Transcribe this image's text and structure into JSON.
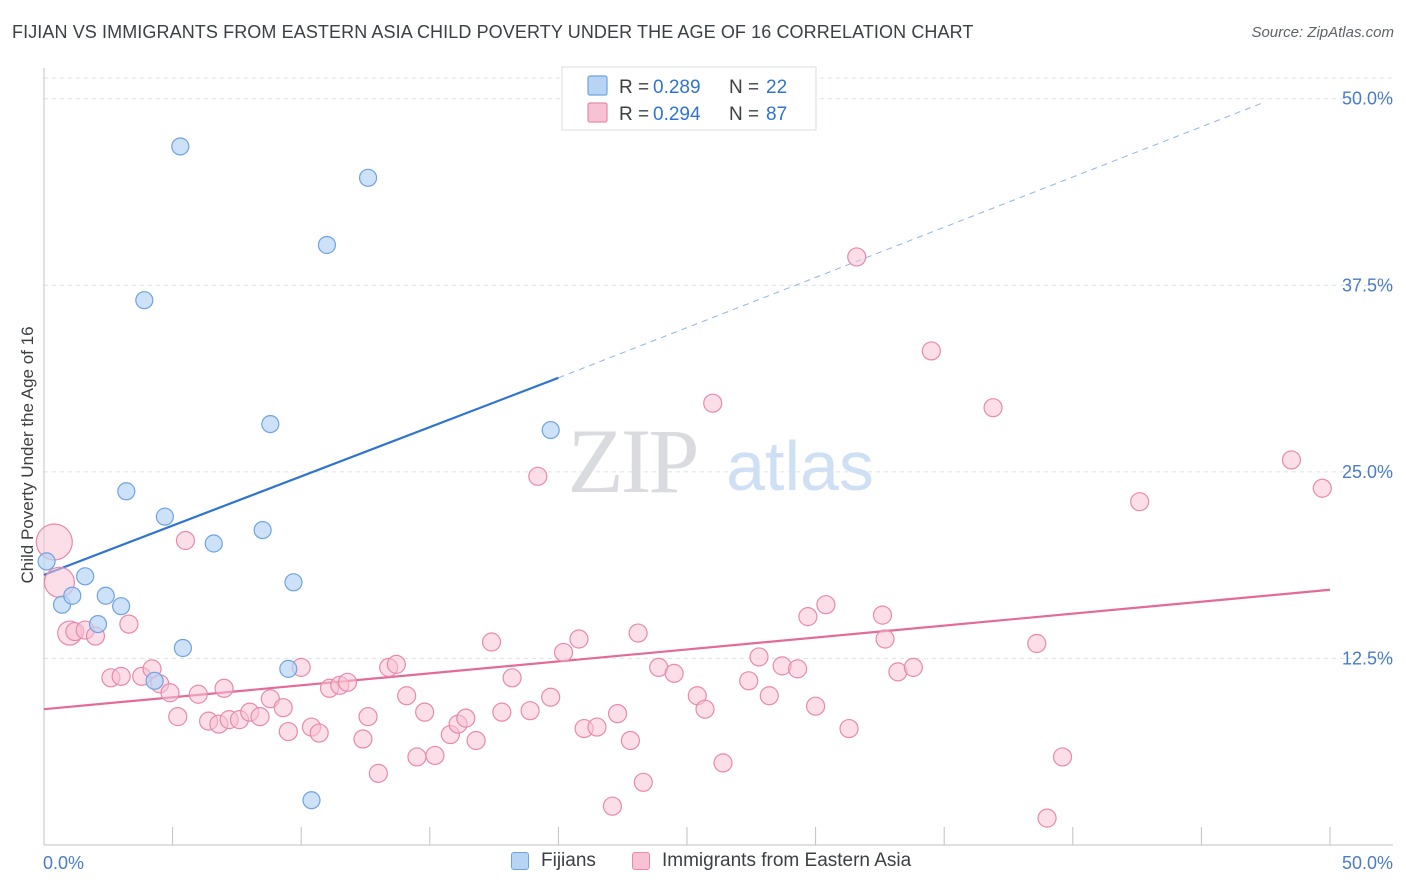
{
  "title": "FIJIAN VS IMMIGRANTS FROM EASTERN ASIA CHILD POVERTY UNDER THE AGE OF 16 CORRELATION CHART",
  "source": "Source: ZipAtlas.com",
  "watermark": {
    "zip": "ZIP",
    "atlas": "atlas"
  },
  "colors": {
    "blue_fill": "#b8d4f5",
    "blue_stroke": "#6fa3e0",
    "blue_line": "#2f74d0",
    "pink_fill": "#f7c2d3",
    "pink_stroke": "#e88aab",
    "pink_line": "#e36b97",
    "axis_label": "#4a7cc7",
    "grid": "#dfe1e5"
  },
  "legend_top": {
    "rows": [
      {
        "r_label": "R =",
        "r_value": "0.289",
        "n_label": "N =",
        "n_value": "22",
        "series": "blue"
      },
      {
        "r_label": "R =",
        "r_value": "0.294",
        "n_label": "N =",
        "n_value": "87",
        "series": "pink"
      }
    ]
  },
  "legend_bottom": [
    "Fijians",
    "Immigrants from Eastern Asia"
  ],
  "chart_data": {
    "type": "scatter",
    "title": "FIJIAN VS IMMIGRANTS FROM EASTERN ASIA CHILD POVERTY UNDER THE AGE OF 16 CORRELATION CHART",
    "xlabel": "",
    "ylabel": "Child Poverty Under the Age of 16",
    "xlim": [
      0,
      50
    ],
    "ylim": [
      0,
      50
    ],
    "x_tick_labels": [
      "0.0%",
      "50.0%"
    ],
    "y_tick_labels": [
      "12.5%",
      "25.0%",
      "37.5%",
      "50.0%"
    ],
    "y_ticks": [
      12.5,
      25,
      37.5,
      50
    ],
    "grid": true,
    "legend_position": "top-center",
    "series": [
      {
        "name": "Fijians",
        "color": "blue",
        "r": 0.289,
        "n": 22,
        "trend": {
          "x0": 0,
          "y0": 18.1,
          "x1": 20,
          "y1": 31.3,
          "dashed_to_x": 47.5,
          "dashed_to_y": 49.8
        },
        "points": [
          [
            0.1,
            19.0
          ],
          [
            0.7,
            16.1
          ],
          [
            1.1,
            16.7
          ],
          [
            1.6,
            18.0
          ],
          [
            2.1,
            14.8
          ],
          [
            2.4,
            16.7
          ],
          [
            3.0,
            16.0
          ],
          [
            3.2,
            23.7
          ],
          [
            3.9,
            36.5
          ],
          [
            4.3,
            11.0
          ],
          [
            4.7,
            22.0
          ],
          [
            5.3,
            46.8
          ],
          [
            5.4,
            13.2
          ],
          [
            6.6,
            20.2
          ],
          [
            8.5,
            21.1
          ],
          [
            8.8,
            28.2
          ],
          [
            9.5,
            11.8
          ],
          [
            9.7,
            17.6
          ],
          [
            10.4,
            3.0
          ],
          [
            11.0,
            40.2
          ],
          [
            12.6,
            44.7
          ],
          [
            19.7,
            27.8
          ]
        ]
      },
      {
        "name": "Immigrants from Eastern Asia",
        "color": "pink",
        "r": 0.294,
        "n": 87,
        "trend": {
          "x0": 0,
          "y0": 9.1,
          "x1": 50,
          "y1": 17.1
        },
        "points": [
          [
            0.4,
            20.3
          ],
          [
            0.6,
            17.6
          ],
          [
            1.0,
            14.2
          ],
          [
            1.2,
            14.3
          ],
          [
            1.6,
            14.4
          ],
          [
            2.0,
            14.0
          ],
          [
            2.6,
            11.2
          ],
          [
            3.0,
            11.3
          ],
          [
            3.3,
            14.8
          ],
          [
            3.8,
            11.3
          ],
          [
            4.2,
            11.8
          ],
          [
            4.5,
            10.8
          ],
          [
            4.9,
            10.2
          ],
          [
            5.2,
            8.6
          ],
          [
            5.5,
            20.4
          ],
          [
            6.0,
            10.1
          ],
          [
            6.4,
            8.3
          ],
          [
            6.8,
            8.1
          ],
          [
            7.0,
            10.5
          ],
          [
            7.2,
            8.4
          ],
          [
            7.6,
            8.4
          ],
          [
            8.0,
            8.9
          ],
          [
            8.4,
            8.6
          ],
          [
            8.8,
            9.8
          ],
          [
            9.3,
            9.2
          ],
          [
            9.5,
            7.6
          ],
          [
            10.0,
            11.9
          ],
          [
            10.4,
            7.9
          ],
          [
            10.7,
            7.5
          ],
          [
            11.1,
            10.5
          ],
          [
            11.5,
            10.7
          ],
          [
            11.8,
            10.9
          ],
          [
            12.4,
            7.1
          ],
          [
            12.6,
            8.6
          ],
          [
            13.0,
            4.8
          ],
          [
            13.4,
            11.9
          ],
          [
            13.7,
            12.1
          ],
          [
            14.1,
            10.0
          ],
          [
            14.5,
            5.9
          ],
          [
            14.8,
            8.9
          ],
          [
            15.2,
            6.0
          ],
          [
            15.8,
            7.4
          ],
          [
            16.1,
            8.1
          ],
          [
            16.4,
            8.5
          ],
          [
            16.8,
            7.0
          ],
          [
            17.4,
            13.6
          ],
          [
            17.8,
            8.9
          ],
          [
            18.2,
            11.2
          ],
          [
            18.9,
            9.0
          ],
          [
            19.2,
            24.7
          ],
          [
            19.7,
            9.9
          ],
          [
            20.2,
            12.9
          ],
          [
            20.8,
            13.8
          ],
          [
            21.0,
            7.8
          ],
          [
            21.5,
            7.9
          ],
          [
            22.1,
            2.6
          ],
          [
            22.3,
            8.8
          ],
          [
            22.8,
            7.0
          ],
          [
            23.1,
            14.2
          ],
          [
            23.3,
            4.2
          ],
          [
            23.9,
            11.9
          ],
          [
            24.5,
            11.5
          ],
          [
            25.4,
            10.0
          ],
          [
            25.7,
            9.1
          ],
          [
            26.0,
            29.6
          ],
          [
            26.4,
            5.5
          ],
          [
            27.4,
            11.0
          ],
          [
            27.8,
            12.6
          ],
          [
            28.2,
            10.0
          ],
          [
            28.7,
            12.0
          ],
          [
            29.3,
            11.8
          ],
          [
            29.7,
            15.3
          ],
          [
            30.0,
            9.3
          ],
          [
            30.4,
            16.1
          ],
          [
            31.3,
            7.8
          ],
          [
            31.6,
            39.4
          ],
          [
            32.6,
            15.4
          ],
          [
            32.7,
            13.8
          ],
          [
            33.2,
            11.6
          ],
          [
            33.8,
            11.9
          ],
          [
            34.5,
            33.1
          ],
          [
            36.9,
            29.3
          ],
          [
            38.6,
            13.5
          ],
          [
            39.0,
            1.8
          ],
          [
            39.6,
            5.9
          ],
          [
            42.6,
            23.0
          ],
          [
            48.5,
            25.8
          ],
          [
            49.7,
            23.9
          ]
        ]
      }
    ]
  },
  "axis_labels": {
    "x_left": "0.0%",
    "x_right": "50.0%",
    "y_title": "Child Poverty Under the Age of 16"
  }
}
